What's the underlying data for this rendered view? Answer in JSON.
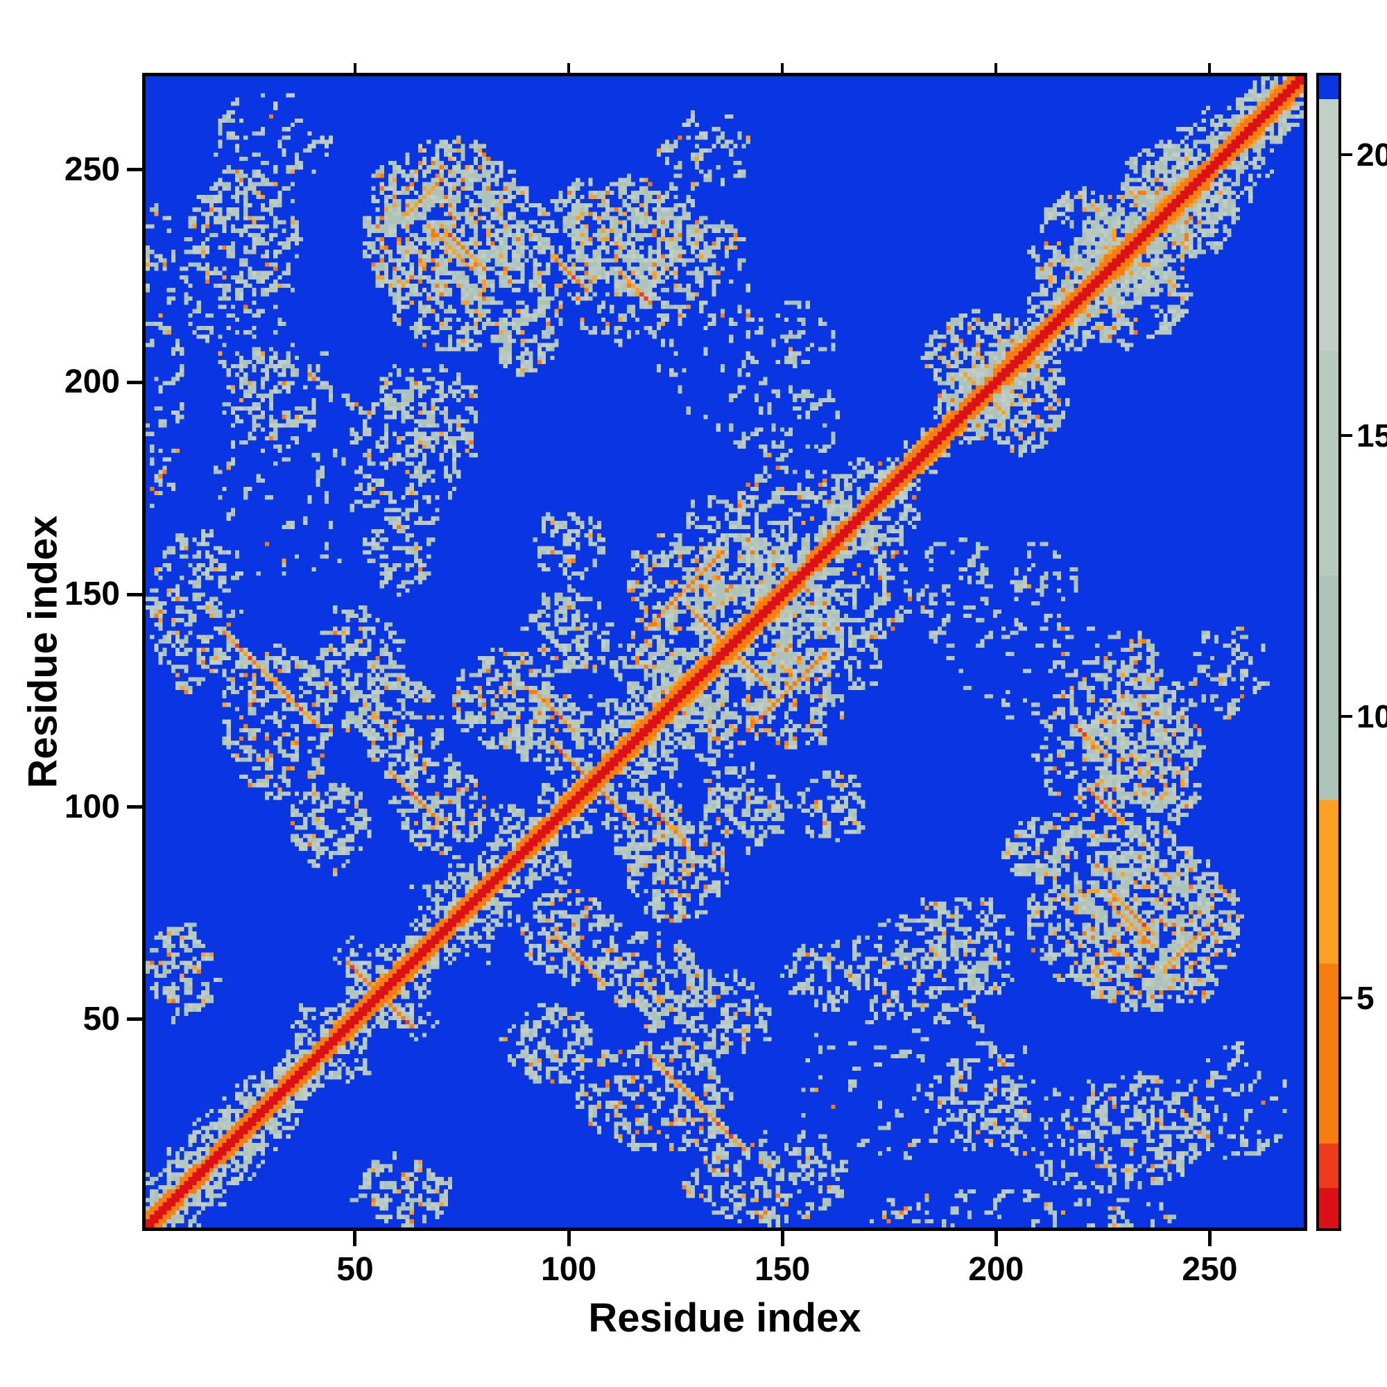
{
  "figure": {
    "xlabel": "Residue index",
    "ylabel": "Residue index",
    "x_ticks": [
      50,
      100,
      150,
      200,
      250
    ],
    "y_ticks": [
      50,
      100,
      150,
      200,
      250
    ],
    "axis_range": [
      1,
      272
    ],
    "colorbar_ticks": [
      5,
      10,
      15,
      20
    ]
  },
  "chart_data": {
    "type": "heatmap",
    "title": "",
    "xlabel": "Residue index",
    "ylabel": "Residue index",
    "x_range": [
      1,
      272
    ],
    "y_range": [
      1,
      272
    ],
    "n_residues": 272,
    "grid": false,
    "legend": "colorbar-right",
    "colorbar_ticks": [
      5,
      10,
      15,
      20
    ],
    "colorbar_vmin": 0.9,
    "colorbar_vmax": 21.4,
    "background_value": 22,
    "description": "Symmetric residue-residue distance map (contact map). Red diagonal (near-zero distance), orange flanks, speckled gray contact clusters mirrored about the diagonal, blue background for large distances.",
    "colormap_stops_format": "[value_upper_bound, hex_color]",
    "colormap_stops": [
      [
        1.6,
        "#dc1016"
      ],
      [
        2.4,
        "#ef3b1d"
      ],
      [
        5.6,
        "#f87d10"
      ],
      [
        8.5,
        "#fb9f25"
      ],
      [
        12.5,
        "#adc2b8"
      ],
      [
        16.5,
        "#b8c9c0"
      ],
      [
        21.0,
        "#c2cfc7"
      ],
      [
        99,
        "#0935e2"
      ]
    ],
    "diagonal_bands_format": "[from_res, to_res, halo_width, density]",
    "diagonal_bands": [
      [
        1,
        36,
        13,
        0.85
      ],
      [
        36,
        152,
        21,
        0.55
      ],
      [
        152,
        186,
        8,
        0.7
      ],
      [
        186,
        220,
        13,
        0.6
      ],
      [
        220,
        252,
        17,
        0.62
      ],
      [
        252,
        272,
        13,
        0.9
      ]
    ],
    "diagonal_orange_segments": [
      [
        44,
        62
      ],
      [
        98,
        116
      ],
      [
        118,
        132
      ],
      [
        134,
        146
      ],
      [
        176,
        190
      ],
      [
        200,
        214
      ],
      [
        224,
        248
      ],
      [
        256,
        268
      ]
    ],
    "holes_format": "[x, y, radius] blue lakes inside the near-diagonal braid",
    "holes": [
      [
        55,
        75,
        8
      ],
      [
        75,
        95,
        7
      ],
      [
        95,
        113,
        7
      ],
      [
        112,
        131,
        6
      ],
      [
        42,
        58,
        6
      ],
      [
        27,
        42,
        5
      ],
      [
        124,
        142,
        5
      ],
      [
        88,
        106,
        6
      ],
      [
        65,
        87,
        6
      ]
    ],
    "clusters_format": "[x, y, rx, ry, n_points, orange_fraction] (mirrored across diagonal)",
    "clusters": [
      [
        75,
        231,
        21,
        24,
        480,
        0.16
      ],
      [
        113,
        234,
        14,
        13,
        230,
        0.12
      ],
      [
        22,
        227,
        13,
        26,
        150,
        0.07
      ],
      [
        67,
        191,
        12,
        14,
        120,
        0.06
      ],
      [
        12,
        146,
        11,
        20,
        170,
        0.12
      ],
      [
        31,
        120,
        13,
        18,
        190,
        0.14
      ],
      [
        50,
        133,
        11,
        15,
        160,
        0.1
      ],
      [
        9,
        61,
        8,
        11,
        100,
        0.1
      ],
      [
        60,
        119,
        10,
        12,
        130,
        0.1
      ],
      [
        85,
        125,
        12,
        12,
        150,
        0.12
      ],
      [
        100,
        141,
        10,
        10,
        110,
        0.08
      ],
      [
        125,
        153,
        12,
        12,
        160,
        0.18
      ],
      [
        148,
        160,
        17,
        18,
        120,
        0.05
      ],
      [
        4,
        205,
        5,
        38,
        80,
        0.1
      ],
      [
        44,
        95,
        10,
        10,
        110,
        0.1
      ],
      [
        70,
        100,
        11,
        11,
        130,
        0.12
      ],
      [
        95,
        118,
        9,
        9,
        100,
        0.1
      ],
      [
        118,
        133,
        8,
        8,
        90,
        0.1
      ],
      [
        230,
        112,
        20,
        22,
        280,
        0.14
      ],
      [
        237,
        70,
        21,
        19,
        330,
        0.17
      ],
      [
        185,
        62,
        20,
        13,
        150,
        0.07
      ],
      [
        197,
        31,
        12,
        13,
        100,
        0.08
      ],
      [
        235,
        25,
        16,
        12,
        120,
        0.09
      ],
      [
        162,
        100,
        8,
        8,
        70,
        0.08
      ],
      [
        205,
        143,
        18,
        22,
        80,
        0.04
      ],
      [
        205,
        196,
        12,
        12,
        200,
        0.14
      ],
      [
        231,
        222,
        15,
        13,
        240,
        0.15
      ],
      [
        246,
        239,
        11,
        9,
        160,
        0.15
      ],
      [
        180,
        35,
        30,
        18,
        70,
        0.05
      ],
      [
        257,
        30,
        12,
        14,
        50,
        0.06
      ],
      [
        255,
        132,
        9,
        11,
        60,
        0.06
      ],
      [
        150,
        190,
        15,
        10,
        45,
        0.04
      ],
      [
        90,
        210,
        8,
        8,
        70,
        0.08
      ],
      [
        134,
        231,
        8,
        8,
        60,
        0.08
      ],
      [
        60,
        160,
        8,
        10,
        70,
        0.06
      ],
      [
        160,
        135,
        14,
        10,
        60,
        0.04
      ]
    ],
    "rings_format": "[x, y, radius, n_points, orange_fraction] thin contact loops",
    "rings": [
      [
        152,
        168,
        12,
        110,
        0.04
      ],
      [
        165,
        153,
        9,
        80,
        0.04
      ],
      [
        170,
        172,
        9,
        75,
        0.04
      ],
      [
        141,
        157,
        7,
        65,
        0.05
      ]
    ],
    "streaks_format": "[x, y, length, slope(+1 parallel / -1 antiparallel)] orange beta-pairing streaks",
    "streaks": [
      [
        19,
        141,
        23,
        -1
      ],
      [
        118,
        142,
        19,
        1
      ],
      [
        58,
        108,
        12,
        -1
      ],
      [
        92,
        127,
        10,
        -1
      ],
      [
        128,
        147,
        9,
        -1
      ],
      [
        96,
        115,
        17,
        -1
      ],
      [
        48,
        63,
        12,
        -1
      ],
      [
        228,
        79,
        10,
        -1
      ],
      [
        240,
        62,
        9,
        1
      ],
      [
        68,
        236,
        10,
        -1
      ],
      [
        112,
        226,
        8,
        -1
      ],
      [
        222,
        104,
        9,
        -1
      ]
    ],
    "seed": 1337
  }
}
